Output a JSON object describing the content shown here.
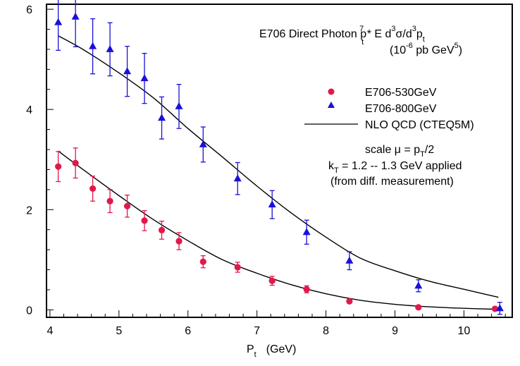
{
  "chart_data": {
    "type": "scatter",
    "xlabel": "P",
    "xlabel_sub": "t",
    "xlabel_unit": "(GeV)",
    "ylabel": "",
    "xlim": [
      3.95,
      10.7
    ],
    "ylim": [
      -0.15,
      6.1
    ],
    "x_ticks": [
      4,
      5,
      6,
      7,
      8,
      9,
      10
    ],
    "y_ticks": [
      0,
      2,
      4,
      6
    ],
    "title": {
      "line1_a": "E706 Direct Photon p",
      "line1_sub": "t",
      "line1_sup": "7",
      "line1_b": " * E d",
      "line1_sup2": "3",
      "line1_c": "σ/d",
      "line1_sup3": "3",
      "line1_d": "p",
      "line1_sub2": "t",
      "line2_a": "(10",
      "line2_sup": "-6",
      "line2_b": " pb GeV",
      "line2_sup2": "5",
      "line2_c": ")"
    },
    "legend": [
      {
        "name": "E706-530GeV",
        "marker": "circle",
        "color": "#e0194a"
      },
      {
        "name": "E706-800GeV",
        "marker": "triangle",
        "color": "#1a10d8"
      },
      {
        "name": "NLO QCD (CTEQ5M)",
        "marker": "line",
        "color": "#000000"
      }
    ],
    "notes": {
      "scale_a": "scale μ = p",
      "scale_sub": "T",
      "scale_b": "/2",
      "kt_a": "k",
      "kt_sub": "T",
      "kt_b": " = 1.2 -- 1.3 GeV applied",
      "diff": "(from diff. measurement)"
    },
    "series": [
      {
        "name": "E706-530GeV",
        "marker": "circle",
        "color": "#e0194a",
        "points": [
          {
            "x": 4.12,
            "y": 2.86,
            "err": 0.3
          },
          {
            "x": 4.37,
            "y": 2.93,
            "err": 0.3
          },
          {
            "x": 4.62,
            "y": 2.42,
            "err": 0.25
          },
          {
            "x": 4.87,
            "y": 2.17,
            "err": 0.23
          },
          {
            "x": 5.12,
            "y": 2.07,
            "err": 0.22
          },
          {
            "x": 5.37,
            "y": 1.78,
            "err": 0.2
          },
          {
            "x": 5.62,
            "y": 1.59,
            "err": 0.18
          },
          {
            "x": 5.87,
            "y": 1.37,
            "err": 0.17
          },
          {
            "x": 6.22,
            "y": 0.96,
            "err": 0.12
          },
          {
            "x": 6.72,
            "y": 0.85,
            "err": 0.1
          },
          {
            "x": 7.22,
            "y": 0.58,
            "err": 0.09
          },
          {
            "x": 7.72,
            "y": 0.41,
            "err": 0.07
          },
          {
            "x": 8.34,
            "y": 0.17,
            "err": 0.03
          },
          {
            "x": 9.34,
            "y": 0.05,
            "err": 0.01
          },
          {
            "x": 10.45,
            "y": 0.02,
            "err": 0.01
          }
        ]
      },
      {
        "name": "E706-800GeV",
        "marker": "triangle",
        "color": "#1a10d8",
        "points": [
          {
            "x": 4.12,
            "y": 5.74,
            "err": 0.56
          },
          {
            "x": 4.37,
            "y": 5.85,
            "err": 0.6
          },
          {
            "x": 4.62,
            "y": 5.26,
            "err": 0.55
          },
          {
            "x": 4.87,
            "y": 5.2,
            "err": 0.53
          },
          {
            "x": 5.12,
            "y": 4.76,
            "err": 0.5
          },
          {
            "x": 5.37,
            "y": 4.62,
            "err": 0.5
          },
          {
            "x": 5.62,
            "y": 3.83,
            "err": 0.42
          },
          {
            "x": 5.87,
            "y": 4.06,
            "err": 0.44
          },
          {
            "x": 6.22,
            "y": 3.3,
            "err": 0.35
          },
          {
            "x": 6.72,
            "y": 2.62,
            "err": 0.32
          },
          {
            "x": 7.22,
            "y": 2.1,
            "err": 0.28
          },
          {
            "x": 7.72,
            "y": 1.55,
            "err": 0.24
          },
          {
            "x": 8.34,
            "y": 0.98,
            "err": 0.18
          },
          {
            "x": 9.34,
            "y": 0.48,
            "err": 0.12
          },
          {
            "x": 10.52,
            "y": 0.03,
            "err": 0.12
          }
        ]
      }
    ],
    "curves": [
      {
        "name": "NLO QCD (CTEQ5M) 800GeV",
        "x": [
          4.12,
          4.5,
          5.0,
          5.5,
          6.0,
          6.5,
          7.0,
          7.5,
          8.0,
          8.5,
          9.0,
          9.5,
          10.0,
          10.5
        ],
        "y": [
          5.47,
          5.18,
          4.73,
          4.23,
          3.62,
          3.05,
          2.47,
          1.93,
          1.45,
          1.03,
          0.78,
          0.57,
          0.41,
          0.25
        ]
      },
      {
        "name": "NLO QCD (CTEQ5M) 530GeV",
        "x": [
          4.12,
          4.5,
          5.0,
          5.5,
          6.0,
          6.5,
          7.0,
          7.5,
          8.0,
          8.5,
          9.0,
          9.5,
          10.0,
          10.5
        ],
        "y": [
          3.17,
          2.78,
          2.28,
          1.8,
          1.38,
          1.0,
          0.73,
          0.5,
          0.32,
          0.19,
          0.11,
          0.06,
          0.03,
          0.01
        ]
      }
    ]
  }
}
